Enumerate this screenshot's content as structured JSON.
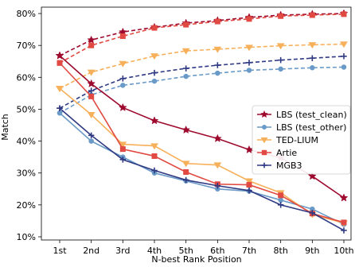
{
  "chart_data": {
    "type": "line",
    "xlabel": "N-best Rank Position",
    "ylabel": "Match",
    "categories": [
      "1st",
      "2nd",
      "3rd",
      "4th",
      "5th",
      "6th",
      "7th",
      "8th",
      "9th",
      "10th"
    ],
    "ylim": [
      9,
      82
    ],
    "yticks": [
      10,
      20,
      30,
      40,
      50,
      60,
      70,
      80
    ],
    "ytick_labels": [
      "10%",
      "20%",
      "30%",
      "40%",
      "50%",
      "60%",
      "70%",
      "80%"
    ],
    "grid": false,
    "legend_position": "right",
    "series": [
      {
        "name": "LBS (test_clean)",
        "color": "#9e0a2e",
        "marker": "star",
        "values": [
          66.8,
          58.0,
          50.5,
          46.4,
          43.5,
          40.8,
          37.3,
          34.8,
          29.0,
          22.2
        ]
      },
      {
        "name": "LBS (test_other)",
        "color": "#6a9ac7",
        "marker": "circle",
        "values": [
          48.8,
          40.0,
          35.0,
          30.0,
          27.5,
          25.0,
          24.3,
          21.5,
          18.7,
          13.9
        ]
      },
      {
        "name": "TED-LIUM",
        "color": "#f7b05a",
        "marker": "triangle-down",
        "values": [
          56.5,
          48.3,
          39.0,
          38.5,
          33.0,
          32.5,
          27.5,
          23.8,
          17.0,
          14.3
        ]
      },
      {
        "name": "Artie",
        "color": "#e14a42",
        "marker": "square",
        "values": [
          64.5,
          54.0,
          37.5,
          35.3,
          30.3,
          26.5,
          26.3,
          23.0,
          17.3,
          14.5
        ]
      },
      {
        "name": "MGB3",
        "color": "#2f3a83",
        "marker": "plus",
        "values": [
          50.3,
          41.8,
          34.2,
          30.8,
          27.8,
          26.0,
          24.5,
          20.0,
          17.5,
          12.0
        ]
      }
    ],
    "cumulative_series": [
      {
        "series": "LBS (test_clean)",
        "color": "#9e0a2e",
        "marker": "star",
        "values": [
          66.8,
          71.7,
          74.2,
          75.7,
          77.0,
          77.8,
          78.8,
          79.5,
          79.8,
          80.0
        ]
      },
      {
        "series": "LBS (test_other)",
        "color": "#6a9ac7",
        "marker": "circle",
        "values": [
          48.8,
          54.5,
          57.5,
          58.8,
          60.3,
          61.3,
          62.2,
          62.6,
          63.0,
          63.2
        ]
      },
      {
        "series": "TED-LIUM",
        "color": "#f7b05a",
        "marker": "triangle-down",
        "values": [
          56.5,
          61.6,
          64.3,
          66.7,
          68.3,
          68.8,
          69.4,
          69.9,
          70.2,
          70.4
        ]
      },
      {
        "series": "Artie",
        "color": "#e14a42",
        "marker": "square",
        "values": [
          64.5,
          70.0,
          72.9,
          75.5,
          76.5,
          77.5,
          78.3,
          79.2,
          79.5,
          79.8
        ]
      },
      {
        "series": "MGB3",
        "color": "#2f3a83",
        "marker": "plus",
        "values": [
          50.3,
          55.8,
          59.6,
          61.4,
          62.8,
          63.8,
          64.6,
          65.4,
          66.0,
          66.6
        ]
      }
    ]
  }
}
